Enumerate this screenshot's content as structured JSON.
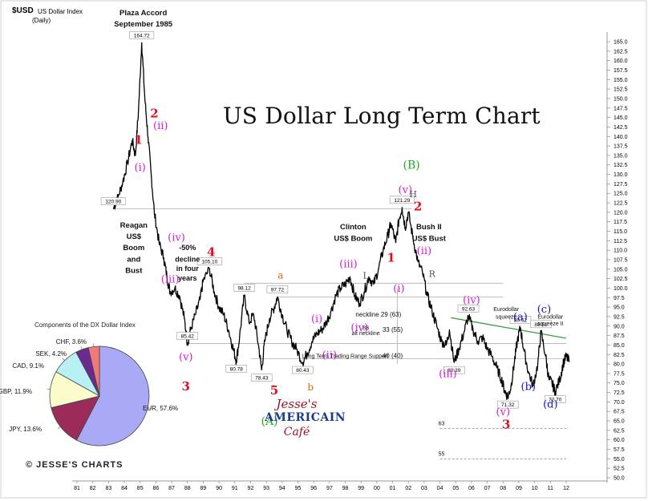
{
  "header": {
    "ticker": "$USD",
    "name": "US Dollar Index",
    "period": "(Daily)"
  },
  "title": "US Dollar Long Term Chart",
  "credit": "© JESSE'S CHARTS",
  "logo": {
    "line1": "Jesse's",
    "line2": "AMERICAIN",
    "line3": "Café"
  },
  "colors": {
    "price": "#000000",
    "wave_red": "#e0101c",
    "wave_magenta": "#d41fd4",
    "wave_green": "#1daa1d",
    "wave_blue": "#1515c0",
    "wave_orange": "#e06a10",
    "wave_gray": "#555555",
    "trend_green": "#2e9a2e",
    "pie_eur": "#a9a9f5",
    "pie_jpy": "#9b2c5a",
    "pie_gbp": "#fbfbcc",
    "pie_cad": "#b7f0f5",
    "pie_sek": "#6a2a8f",
    "pie_chf": "#f07a7a"
  },
  "chart_data": [
    {
      "type": "line",
      "title": "US Dollar Long Term Chart",
      "series_label": "$USD US Dollar Index (Daily)",
      "x_tick_labels": [
        "81",
        "82",
        "83",
        "84",
        "85",
        "86",
        "87",
        "88",
        "89",
        "90",
        "91",
        "92",
        "93",
        "94",
        "95",
        "96",
        "97",
        "98",
        "99",
        "00",
        "01",
        "02",
        "03",
        "04",
        "05",
        "06",
        "07",
        "08",
        "09",
        "10",
        "11",
        "12"
      ],
      "y_tick_labels": [
        "165.0",
        "162.5",
        "160.0",
        "157.5",
        "155.0",
        "152.5",
        "150.0",
        "147.5",
        "145.0",
        "142.5",
        "140.0",
        "137.5",
        "135.0",
        "132.5",
        "130.0",
        "127.5",
        "125.0",
        "122.5",
        "120.0",
        "117.5",
        "115.0",
        "112.5",
        "110.0",
        "107.5",
        "105.0",
        "102.5",
        "100.0",
        "97.5",
        "95.0",
        "92.5",
        "90.0",
        "87.5",
        "85.0",
        "82.5",
        "80.0",
        "77.5",
        "75.0",
        "72.5",
        "70.0",
        "67.5",
        "65.0",
        "62.5",
        "60.0",
        "57.5",
        "55.0",
        "52.5",
        "50.0"
      ],
      "xlim": [
        1981,
        2012
      ],
      "ylim": [
        50,
        165
      ],
      "series_points": [
        [
          1983.3,
          120.9
        ],
        [
          1983.6,
          124
        ],
        [
          1983.9,
          128
        ],
        [
          1984.2,
          133
        ],
        [
          1984.5,
          139
        ],
        [
          1984.7,
          135
        ],
        [
          1984.9,
          147
        ],
        [
          1985.1,
          164.72
        ],
        [
          1985.3,
          150
        ],
        [
          1985.5,
          140
        ],
        [
          1985.7,
          130
        ],
        [
          1985.9,
          120
        ],
        [
          1986.2,
          112
        ],
        [
          1986.5,
          108
        ],
        [
          1986.7,
          103
        ],
        [
          1986.9,
          99
        ],
        [
          1987.2,
          100
        ],
        [
          1987.5,
          98
        ],
        [
          1987.8,
          92
        ],
        [
          1988.0,
          85.42
        ],
        [
          1988.2,
          89
        ],
        [
          1988.5,
          93
        ],
        [
          1988.8,
          97
        ],
        [
          1989.0,
          102
        ],
        [
          1989.4,
          105.1
        ],
        [
          1989.7,
          99
        ],
        [
          1990.0,
          95
        ],
        [
          1990.3,
          93
        ],
        [
          1990.6,
          89
        ],
        [
          1990.9,
          84
        ],
        [
          1991.1,
          80.78
        ],
        [
          1991.3,
          87
        ],
        [
          1991.6,
          98.12
        ],
        [
          1991.9,
          91
        ],
        [
          1992.2,
          93
        ],
        [
          1992.5,
          85
        ],
        [
          1992.7,
          78.43
        ],
        [
          1992.9,
          86
        ],
        [
          1993.2,
          92
        ],
        [
          1993.5,
          95
        ],
        [
          1993.7,
          97.72
        ],
        [
          1994.0,
          93
        ],
        [
          1994.3,
          89
        ],
        [
          1994.6,
          86
        ],
        [
          1994.9,
          84
        ],
        [
          1995.3,
          80.43
        ],
        [
          1995.6,
          83
        ],
        [
          1995.9,
          86
        ],
        [
          1996.2,
          88
        ],
        [
          1996.5,
          89
        ],
        [
          1996.8,
          91
        ],
        [
          1997.1,
          94
        ],
        [
          1997.4,
          98
        ],
        [
          1997.7,
          100
        ],
        [
          1998.0,
          101
        ],
        [
          1998.3,
          103
        ],
        [
          1998.6,
          98
        ],
        [
          1998.9,
          96
        ],
        [
          1999.2,
          99
        ],
        [
          1999.5,
          103
        ],
        [
          1999.8,
          101
        ],
        [
          2000.1,
          105
        ],
        [
          2000.4,
          110
        ],
        [
          2000.7,
          114
        ],
        [
          2000.9,
          117
        ],
        [
          2001.2,
          112
        ],
        [
          2001.4,
          118
        ],
        [
          2001.6,
          121.29
        ],
        [
          2001.8,
          116
        ],
        [
          2002.0,
          120
        ],
        [
          2002.3,
          113
        ],
        [
          2002.6,
          107
        ],
        [
          2002.9,
          104
        ],
        [
          2003.2,
          98
        ],
        [
          2003.5,
          94
        ],
        [
          2003.8,
          90
        ],
        [
          2004.1,
          86
        ],
        [
          2004.4,
          85
        ],
        [
          2004.6,
          89
        ],
        [
          2004.9,
          80.39
        ],
        [
          2005.2,
          84
        ],
        [
          2005.5,
          88
        ],
        [
          2005.8,
          92.63
        ],
        [
          2006.1,
          89
        ],
        [
          2006.4,
          86
        ],
        [
          2006.7,
          87
        ],
        [
          2007.0,
          84
        ],
        [
          2007.3,
          82
        ],
        [
          2007.6,
          79
        ],
        [
          2007.9,
          76
        ],
        [
          2008.1,
          73
        ],
        [
          2008.3,
          71.32
        ],
        [
          2008.5,
          74
        ],
        [
          2008.7,
          80
        ],
        [
          2008.9,
          86
        ],
        [
          2009.1,
          89.62
        ],
        [
          2009.3,
          84
        ],
        [
          2009.6,
          78
        ],
        [
          2009.9,
          74.2
        ],
        [
          2010.2,
          80
        ],
        [
          2010.4,
          88.51
        ],
        [
          2010.7,
          82
        ],
        [
          2010.9,
          76
        ],
        [
          2011.1,
          75
        ],
        [
          2011.3,
          72.7
        ],
        [
          2011.6,
          76
        ],
        [
          2011.8,
          80
        ],
        [
          2012.0,
          82
        ],
        [
          2012.2,
          80.5
        ]
      ],
      "data_labels": [
        {
          "x": 1983.3,
          "y": 120.9,
          "text": "120.90"
        },
        {
          "x": 1985.1,
          "y": 164.72,
          "text": "164.72"
        },
        {
          "x": 1988.0,
          "y": 85.42,
          "text": "85.42"
        },
        {
          "x": 1989.4,
          "y": 105.1,
          "text": "105.10"
        },
        {
          "x": 1991.1,
          "y": 80.78,
          "text": "80.78"
        },
        {
          "x": 1991.6,
          "y": 98.12,
          "text": "98.12"
        },
        {
          "x": 1992.7,
          "y": 78.43,
          "text": "78.43"
        },
        {
          "x": 1993.7,
          "y": 97.72,
          "text": "97.72"
        },
        {
          "x": 1995.3,
          "y": 80.43,
          "text": "80.43"
        },
        {
          "x": 2001.6,
          "y": 121.29,
          "text": "121.29"
        },
        {
          "x": 2004.9,
          "y": 80.39,
          "text": "80.39"
        },
        {
          "x": 2005.8,
          "y": 92.63,
          "text": "92.63"
        },
        {
          "x": 2008.3,
          "y": 71.32,
          "text": "71.32"
        },
        {
          "x": 2009.1,
          "y": 89.62,
          "text": "89.62"
        },
        {
          "x": 2010.4,
          "y": 88.51,
          "text": "88.51"
        },
        {
          "x": 2011.3,
          "y": 72.7,
          "text": "72.70"
        }
      ],
      "reference_lines": [
        {
          "y": 120.9,
          "x1": 1983.3,
          "x2": 2002.2
        },
        {
          "y": 101.3,
          "x1": 1991.6,
          "x2": 2008.0
        },
        {
          "y": 97.7,
          "x1": 1993.7,
          "x2": 2008.0
        },
        {
          "y": 85.4,
          "x1": 1988.0,
          "x2": 2012.0
        },
        {
          "y": 81.4,
          "x1": 1992.0,
          "x2": 2012.0
        },
        {
          "y": 63.0,
          "x1": 2004.0,
          "x2": 2012.0
        },
        {
          "y": 55.0,
          "x1": 2004.0,
          "x2": 2012.0
        }
      ],
      "trendline": {
        "x1": 2004.7,
        "y1": 92.2,
        "x2": 2012.0,
        "y2": 86.8
      },
      "annotations": [
        {
          "x": 1985.2,
          "y": 172,
          "text": "Plaza Accord",
          "style": "bold-black"
        },
        {
          "x": 1985.2,
          "y": 169,
          "text": "September 1985",
          "style": "bold-black"
        },
        {
          "x": 1985.9,
          "y": 145,
          "text": "2",
          "style": "red"
        },
        {
          "x": 1986.3,
          "y": 142,
          "text": "(ii)",
          "style": "magenta"
        },
        {
          "x": 1984.9,
          "y": 138,
          "text": "1",
          "style": "red"
        },
        {
          "x": 1985.0,
          "y": 131,
          "text": "(i)",
          "style": "magenta"
        },
        {
          "x": 1984.6,
          "y": 116,
          "text": "Reagan",
          "style": "bold-black"
        },
        {
          "x": 1984.6,
          "y": 113,
          "text": "US$",
          "style": "bold-black"
        },
        {
          "x": 1984.6,
          "y": 110,
          "text": "Boom",
          "style": "bold-black"
        },
        {
          "x": 1984.6,
          "y": 107,
          "text": "and",
          "style": "bold-black"
        },
        {
          "x": 1984.6,
          "y": 104,
          "text": "Bust",
          "style": "bold-black"
        },
        {
          "x": 1987.3,
          "y": 112.5,
          "text": "(iv)",
          "style": "magenta"
        },
        {
          "x": 1988.0,
          "y": 110,
          "text": "-50%",
          "style": "bold-black-small"
        },
        {
          "x": 1988.0,
          "y": 107,
          "text": "decline",
          "style": "bold-black-small"
        },
        {
          "x": 1988.0,
          "y": 104.5,
          "text": "in four",
          "style": "bold-black-small"
        },
        {
          "x": 1988.0,
          "y": 102,
          "text": "years",
          "style": "bold-black-small"
        },
        {
          "x": 1989.5,
          "y": 108.5,
          "text": "4",
          "style": "red"
        },
        {
          "x": 1986.9,
          "y": 101.5,
          "text": "(iii)",
          "style": "magenta"
        },
        {
          "x": 1987.9,
          "y": 81,
          "text": "(v)",
          "style": "magenta"
        },
        {
          "x": 1987.9,
          "y": 73,
          "text": "3",
          "style": "red"
        },
        {
          "x": 1993.5,
          "y": 72,
          "text": "5",
          "style": "red"
        },
        {
          "x": 1993.2,
          "y": 64,
          "text": "(A)",
          "style": "green"
        },
        {
          "x": 1993.9,
          "y": 102.5,
          "text": "a",
          "style": "orange"
        },
        {
          "x": 1995.8,
          "y": 73,
          "text": "b",
          "style": "orange"
        },
        {
          "x": 1996.2,
          "y": 91,
          "text": "(i)",
          "style": "magenta"
        },
        {
          "x": 1997.0,
          "y": 81.5,
          "text": "(ii)",
          "style": "magenta"
        },
        {
          "x": 1998.2,
          "y": 105.5,
          "text": "(iii)",
          "style": "magenta"
        },
        {
          "x": 1998.9,
          "y": 88.7,
          "text": "(iv)",
          "style": "magenta"
        },
        {
          "x": 1998.5,
          "y": 115.5,
          "text": "Clinton",
          "style": "bold-black"
        },
        {
          "x": 1998.5,
          "y": 112.5,
          "text": "US$ Boom",
          "style": "bold-black"
        },
        {
          "x": 2002.2,
          "y": 131.5,
          "text": "(B)",
          "style": "green"
        },
        {
          "x": 2001.8,
          "y": 125,
          "text": "(v)",
          "style": "magenta"
        },
        {
          "x": 2002.6,
          "y": 120.5,
          "text": "2",
          "style": "red"
        },
        {
          "x": 2002.3,
          "y": 124,
          "text": "H",
          "style": "gray"
        },
        {
          "x": 2000.9,
          "y": 107,
          "text": "1",
          "style": "red"
        },
        {
          "x": 2003.3,
          "y": 115.5,
          "text": "Bush II",
          "style": "bold-black"
        },
        {
          "x": 2003.3,
          "y": 112.5,
          "text": "US$ Bust",
          "style": "bold-black"
        },
        {
          "x": 2003.0,
          "y": 109,
          "text": "(ii)",
          "style": "magenta"
        },
        {
          "x": 2001.4,
          "y": 99,
          "text": "(i)",
          "style": "magenta"
        },
        {
          "x": 2003.5,
          "y": 103,
          "text": "R",
          "style": "gray"
        },
        {
          "x": 1999.3,
          "y": 102.5,
          "text": "L",
          "style": "gray"
        },
        {
          "x": 1999.4,
          "y": 92.5,
          "text": "neckline",
          "style": "black"
        },
        {
          "x": 2000.9,
          "y": 92.5,
          "text": "29 (63)",
          "style": "black"
        },
        {
          "x": 1999.3,
          "y": 89,
          "text": "88",
          "style": "black-small"
        },
        {
          "x": 1999.3,
          "y": 87.6,
          "text": "alt neckline",
          "style": "black-small"
        },
        {
          "x": 2001.0,
          "y": 88.5,
          "text": "33 (55)",
          "style": "black"
        },
        {
          "x": 1998.0,
          "y": 81.6,
          "text": "Long Term Trading Range Support",
          "style": "black-small"
        },
        {
          "x": 2001.0,
          "y": 81.6,
          "text": "40 (40)",
          "style": "black"
        },
        {
          "x": 2006.0,
          "y": 96,
          "text": "(iv)",
          "style": "magenta"
        },
        {
          "x": 2004.5,
          "y": 76.5,
          "text": "(iii)",
          "style": "magenta"
        },
        {
          "x": 2008.0,
          "y": 66.5,
          "text": "(v)",
          "style": "magenta"
        },
        {
          "x": 2008.2,
          "y": 63,
          "text": "3",
          "style": "red"
        },
        {
          "x": 2008.2,
          "y": 94,
          "text": "Eurodollar",
          "style": "black-small"
        },
        {
          "x": 2008.2,
          "y": 92,
          "text": "squeeze",
          "style": "black-small"
        },
        {
          "x": 2009.1,
          "y": 91.5,
          "text": "(a)",
          "style": "blue"
        },
        {
          "x": 2010.6,
          "y": 93.5,
          "text": "(c)",
          "style": "blue"
        },
        {
          "x": 2011.0,
          "y": 92,
          "text": "Eurodollar",
          "style": "black-small"
        },
        {
          "x": 2011.0,
          "y": 90.2,
          "text": "squeeze II",
          "style": "black-small"
        },
        {
          "x": 2009.6,
          "y": 73.2,
          "text": "(b)",
          "style": "blue"
        },
        {
          "x": 2011.0,
          "y": 68.5,
          "text": "(d)",
          "style": "blue"
        },
        {
          "x": 2004.1,
          "y": 63.8,
          "text": "63",
          "style": "black-small"
        },
        {
          "x": 2004.1,
          "y": 55.8,
          "text": "55",
          "style": "black-small"
        }
      ],
      "grid": false,
      "legend": "none"
    },
    {
      "type": "pie",
      "title": "Components of the DX Dollar Index",
      "labels": [
        "EUR, 57.6%",
        "JPY, 13.6%",
        "GBP, 11.9%",
        "CAD, 9.1%",
        "SEK, 4.2%",
        "CHF, 3.6%"
      ],
      "values": [
        57.6,
        13.6,
        11.9,
        9.1,
        4.2,
        3.6
      ],
      "categories": [
        "EUR",
        "JPY",
        "GBP",
        "CAD",
        "SEK",
        "CHF"
      ]
    }
  ]
}
